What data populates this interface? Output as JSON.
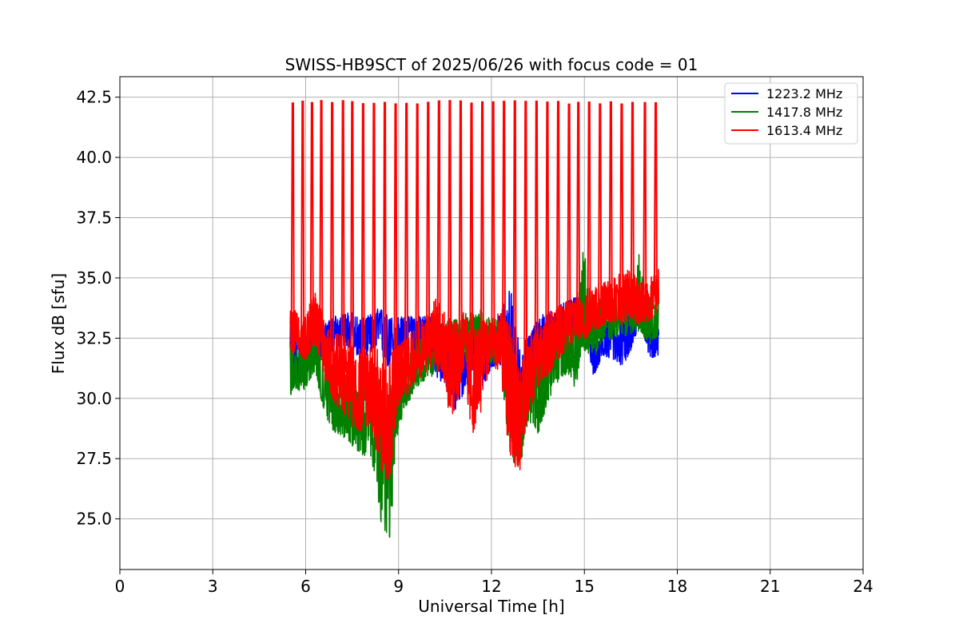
{
  "chart_data": {
    "type": "line",
    "title": "SWISS-HB9SCT of 2025/06/26 with focus code = 01",
    "xlabel": "Universal Time [h]",
    "ylabel": "Flux dB [sfu]",
    "xlim": [
      0,
      24
    ],
    "ylim": [
      22.9,
      43.35
    ],
    "xticks": [
      0,
      3,
      6,
      9,
      12,
      15,
      18,
      21,
      24
    ],
    "yticks": [
      25.0,
      27.5,
      30.0,
      32.5,
      35.0,
      37.5,
      40.0,
      42.5
    ],
    "grid": true,
    "legend_position": "top-right",
    "series": [
      {
        "name": "1223.2 MHz",
        "color": "#0000ff",
        "x": [
          5.5,
          5.7,
          6.0,
          6.3,
          6.6,
          6.9,
          7.2,
          7.5,
          7.8,
          8.1,
          8.4,
          8.7,
          9.0,
          9.3,
          9.6,
          9.9,
          10.2,
          10.5,
          10.8,
          11.1,
          11.4,
          11.7,
          12.0,
          12.3,
          12.6,
          12.9,
          13.2,
          13.5,
          13.8,
          14.1,
          14.4,
          14.7,
          15.0,
          15.3,
          15.6,
          15.9,
          16.2,
          16.5,
          16.8,
          17.1,
          17.4
        ],
        "values": [
          31.0,
          31.6,
          31.8,
          32.2,
          32.4,
          32.8,
          32.9,
          32.7,
          32.4,
          32.7,
          32.8,
          32.3,
          32.6,
          32.6,
          32.7,
          32.6,
          32.1,
          31.8,
          30.9,
          31.1,
          32.0,
          31.6,
          32.2,
          32.5,
          32.3,
          29.8,
          31.6,
          32.5,
          32.8,
          33.1,
          33.3,
          33.6,
          33.5,
          31.2,
          32.3,
          32.3,
          32.0,
          32.5,
          33.8,
          32.3,
          32.1
        ],
        "low": [
          30.5,
          30.6,
          31.0,
          31.4,
          31.8,
          32.0,
          32.2,
          32.0,
          31.6,
          31.9,
          31.8,
          31.2,
          31.8,
          31.7,
          31.8,
          31.6,
          30.8,
          30.6,
          29.4,
          30.2,
          31.0,
          30.4,
          31.2,
          31.4,
          31.4,
          28.6,
          30.8,
          31.6,
          32.0,
          32.4,
          32.6,
          32.8,
          32.8,
          30.9,
          31.8,
          31.6,
          31.3,
          31.9,
          33.2,
          31.7,
          31.7
        ],
        "high": [
          33.3,
          32.6,
          32.6,
          33.0,
          33.1,
          33.4,
          33.5,
          33.6,
          33.3,
          33.5,
          33.8,
          33.4,
          33.4,
          33.4,
          33.5,
          33.5,
          33.4,
          33.2,
          32.5,
          32.3,
          33.0,
          33.0,
          33.1,
          33.5,
          34.8,
          32.2,
          32.6,
          33.4,
          33.6,
          33.8,
          34.0,
          34.2,
          34.2,
          32.6,
          33.0,
          33.4,
          33.2,
          33.6,
          34.2,
          33.0,
          32.9
        ]
      },
      {
        "name": "1417.8 MHz",
        "color": "#008000",
        "x": [
          5.5,
          5.7,
          6.0,
          6.3,
          6.6,
          6.9,
          7.2,
          7.5,
          7.8,
          8.1,
          8.4,
          8.7,
          9.0,
          9.3,
          9.6,
          9.9,
          10.2,
          10.5,
          10.8,
          11.1,
          11.4,
          11.7,
          12.0,
          12.3,
          12.6,
          12.9,
          13.2,
          13.5,
          13.8,
          14.1,
          14.4,
          14.7,
          15.0,
          15.3,
          15.6,
          15.9,
          16.2,
          16.5,
          16.8,
          17.1,
          17.4
        ],
        "values": [
          30.8,
          31.1,
          31.2,
          32.0,
          30.6,
          29.8,
          29.6,
          29.4,
          28.9,
          29.0,
          28.4,
          27.6,
          30.0,
          30.8,
          31.5,
          31.8,
          32.0,
          32.2,
          32.4,
          32.4,
          32.6,
          32.7,
          32.3,
          32.4,
          30.8,
          28.8,
          30.2,
          30.4,
          31.0,
          31.6,
          32.0,
          32.0,
          33.2,
          32.8,
          33.2,
          33.3,
          33.5,
          33.4,
          33.6,
          33.1,
          33.4
        ],
        "low": [
          30.1,
          30.2,
          30.4,
          31.0,
          29.4,
          28.6,
          28.4,
          28.0,
          27.6,
          27.6,
          25.0,
          23.8,
          28.8,
          29.8,
          30.4,
          30.8,
          31.0,
          31.2,
          31.4,
          31.4,
          31.8,
          31.8,
          31.4,
          31.4,
          27.4,
          26.9,
          29.0,
          28.4,
          29.8,
          30.6,
          31.0,
          30.4,
          32.0,
          31.6,
          32.4,
          32.4,
          32.6,
          32.6,
          32.8,
          32.2,
          32.6
        ],
        "high": [
          32.6,
          32.2,
          32.3,
          32.8,
          32.0,
          31.2,
          31.2,
          30.8,
          30.4,
          30.6,
          30.8,
          30.4,
          31.4,
          32.0,
          32.6,
          32.8,
          33.0,
          33.2,
          33.3,
          33.5,
          33.6,
          33.7,
          33.4,
          33.5,
          33.0,
          30.4,
          31.6,
          31.8,
          32.2,
          32.6,
          33.0,
          33.2,
          36.6,
          34.4,
          34.0,
          34.2,
          34.4,
          34.6,
          36.2,
          34.2,
          34.1
        ]
      },
      {
        "name": "1613.4 MHz",
        "color": "#ff0000",
        "x": [
          5.5,
          5.7,
          6.0,
          6.3,
          6.6,
          6.9,
          7.2,
          7.5,
          7.8,
          8.1,
          8.4,
          8.7,
          9.0,
          9.3,
          9.6,
          9.9,
          10.2,
          10.5,
          10.8,
          11.1,
          11.4,
          11.7,
          12.0,
          12.3,
          12.6,
          12.9,
          13.2,
          13.5,
          13.8,
          14.1,
          14.4,
          14.7,
          15.0,
          15.3,
          15.6,
          15.9,
          16.2,
          16.5,
          16.8,
          17.1,
          17.4
        ],
        "values": [
          32.6,
          32.8,
          32.4,
          33.0,
          32.0,
          31.4,
          31.0,
          30.6,
          30.4,
          30.6,
          30.0,
          28.6,
          31.0,
          31.6,
          32.0,
          32.2,
          32.6,
          32.2,
          31.6,
          32.2,
          31.0,
          31.6,
          32.6,
          32.2,
          31.8,
          28.8,
          31.0,
          31.8,
          32.0,
          32.6,
          32.8,
          33.4,
          33.0,
          33.4,
          33.8,
          34.0,
          34.0,
          34.2,
          33.6,
          34.0,
          34.4
        ],
        "low": [
          31.4,
          31.8,
          31.6,
          32.2,
          30.8,
          29.8,
          29.4,
          28.8,
          28.6,
          29.0,
          27.0,
          26.4,
          29.6,
          30.2,
          30.8,
          31.0,
          31.4,
          30.0,
          28.8,
          31.0,
          28.2,
          29.6,
          31.6,
          30.8,
          27.4,
          26.8,
          29.4,
          30.4,
          30.8,
          31.6,
          31.8,
          32.4,
          32.4,
          32.8,
          33.0,
          33.2,
          33.0,
          33.2,
          33.0,
          33.2,
          33.6
        ],
        "high": [
          33.8,
          33.6,
          33.4,
          34.6,
          33.2,
          32.8,
          32.6,
          32.4,
          32.0,
          32.2,
          32.4,
          31.8,
          32.4,
          32.8,
          33.2,
          33.4,
          34.2,
          33.6,
          33.2,
          33.6,
          32.8,
          33.2,
          33.4,
          33.6,
          33.2,
          31.2,
          32.6,
          33.0,
          33.4,
          33.8,
          34.0,
          34.2,
          34.2,
          34.6,
          34.8,
          35.0,
          35.2,
          35.4,
          34.8,
          35.0,
          35.4
        ],
        "spike_x": [
          5.58,
          5.9,
          6.2,
          6.5,
          6.85,
          7.2,
          7.5,
          7.85,
          8.2,
          8.55,
          8.9,
          9.25,
          9.6,
          9.95,
          10.3,
          10.65,
          11.0,
          11.35,
          11.7,
          12.05,
          12.4,
          12.75,
          13.1,
          13.45,
          13.8,
          14.15,
          14.5,
          14.8,
          15.15,
          15.5,
          15.85,
          16.2,
          16.55,
          16.95,
          17.3
        ],
        "spike_peak": 42.35
      }
    ]
  }
}
